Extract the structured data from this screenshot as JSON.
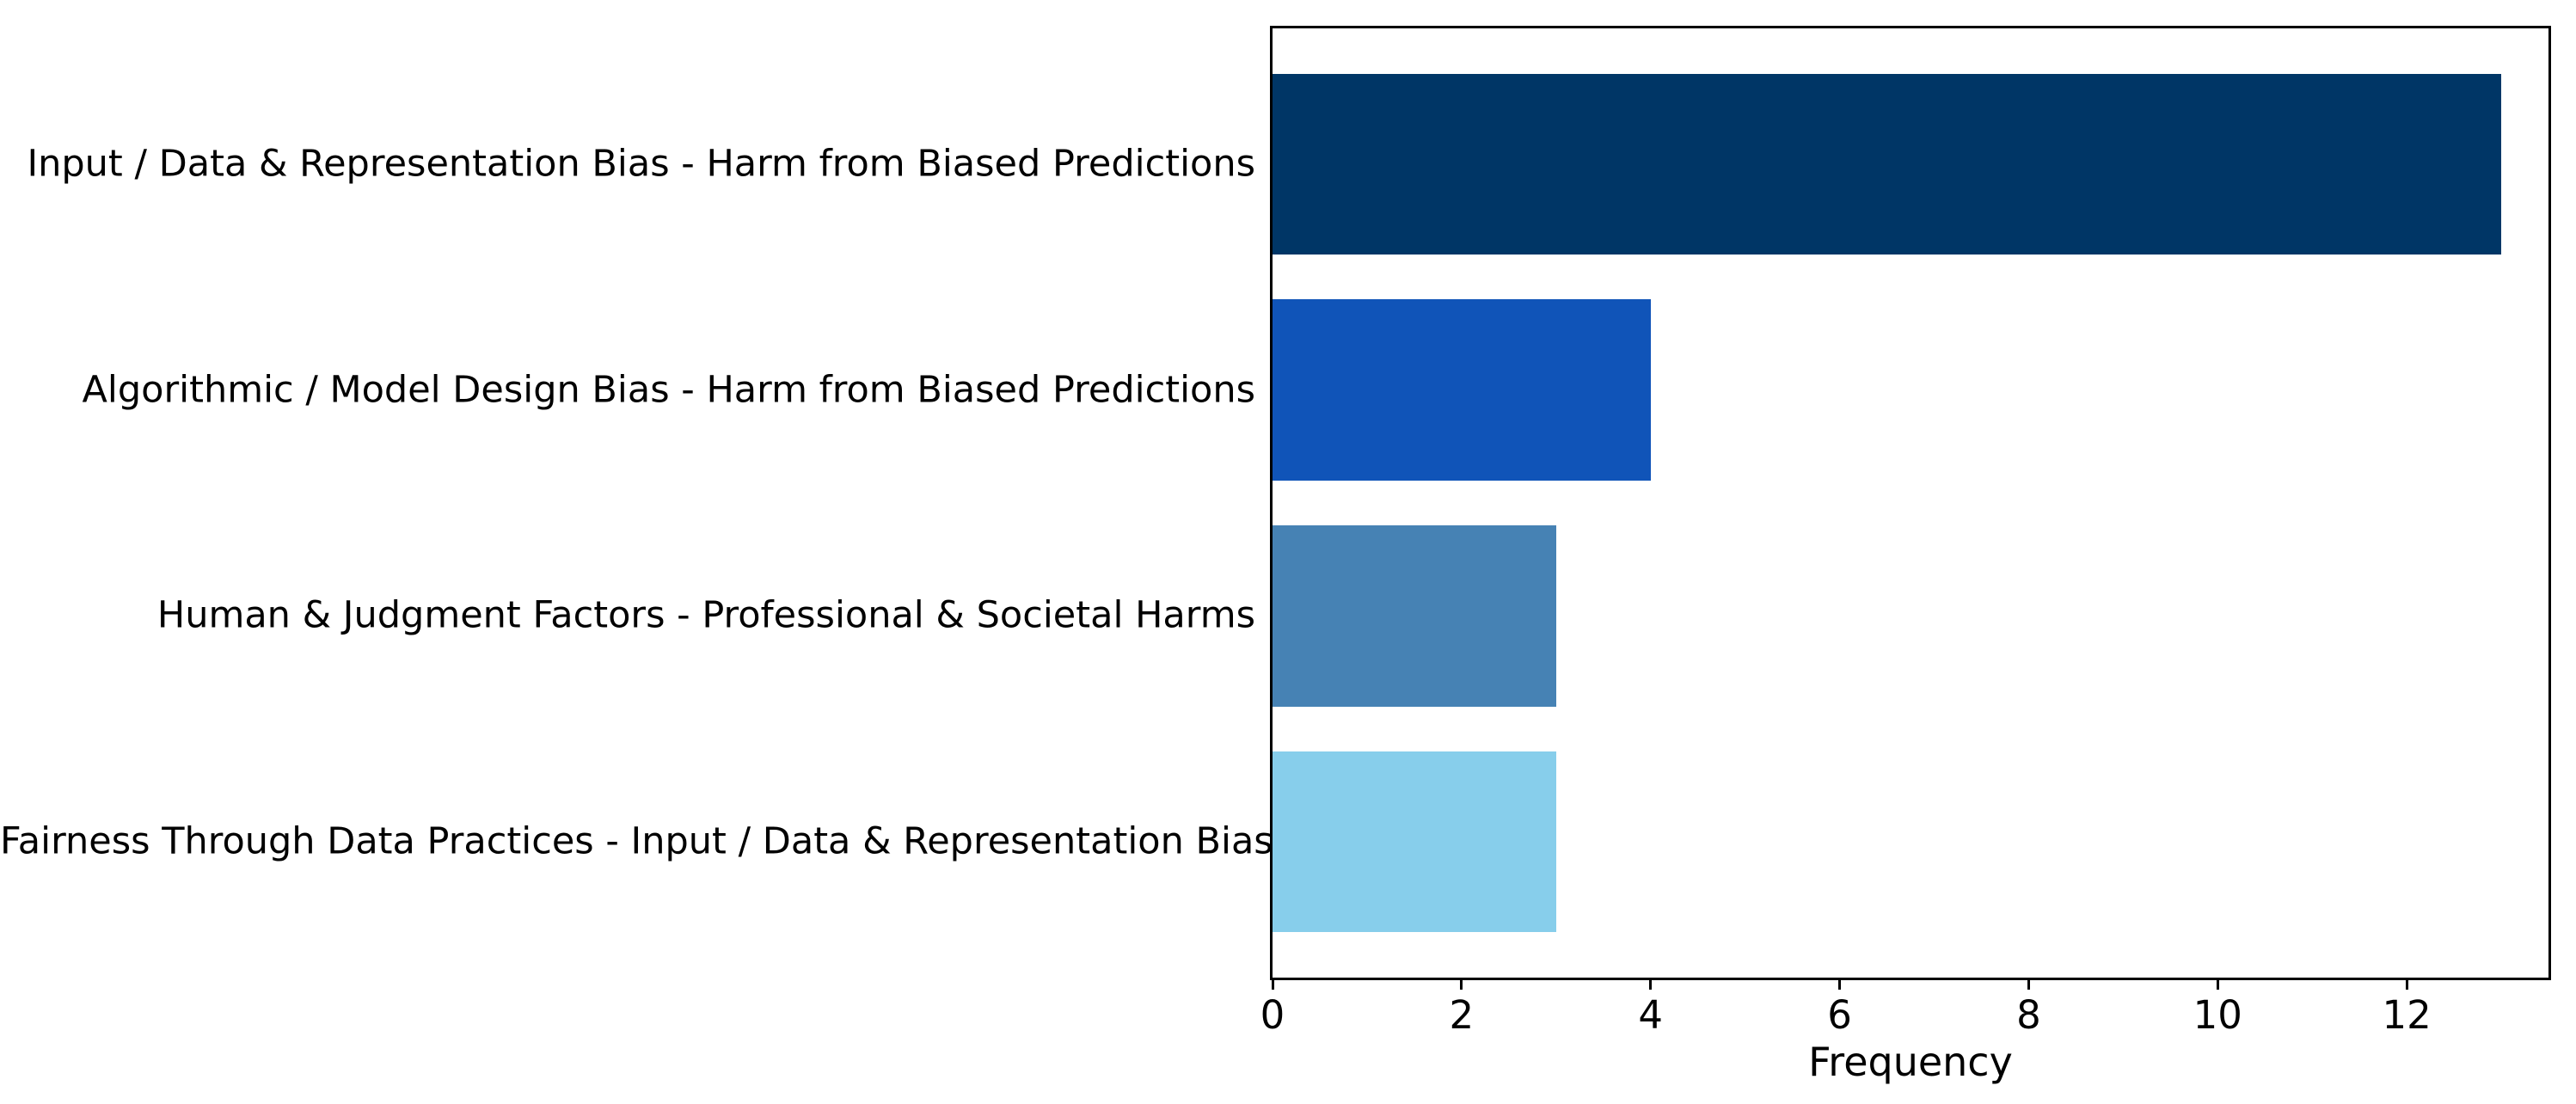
{
  "chart_data": {
    "type": "bar",
    "orientation": "horizontal",
    "title": "",
    "xlabel": "Frequency",
    "ylabel": "",
    "categories": [
      "Input / Data & Representation Bias - Harm from Biased Predictions",
      "Algorithmic / Model Design Bias - Harm from Biased Predictions",
      "Human & Judgment Factors - Professional & Societal Harms",
      "Fairness Through Data Practices - Input / Data & Representation Bias"
    ],
    "values": [
      13,
      4,
      3,
      3
    ],
    "bar_colors": [
      "#003666",
      "#1054B8",
      "#4682B4",
      "#87CEEB"
    ],
    "xticks": [
      0,
      2,
      4,
      6,
      8,
      10,
      12
    ],
    "xlim": [
      0,
      13.5
    ],
    "grid": false,
    "background_color": "#ffffff",
    "axis_color": "#000000",
    "text_color": "#000000",
    "legend": "none"
  }
}
